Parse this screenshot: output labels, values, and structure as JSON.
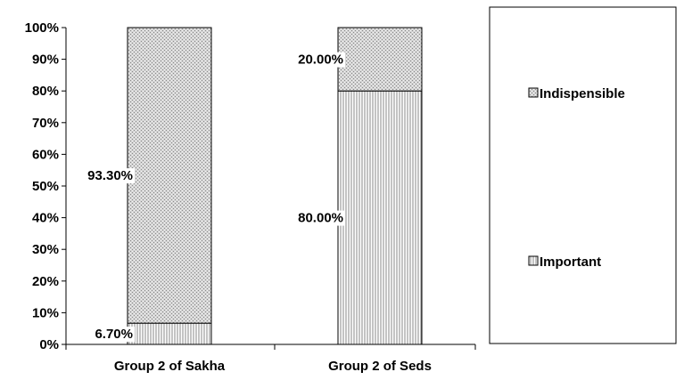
{
  "chart_data": {
    "type": "bar",
    "stacked": true,
    "percent": true,
    "categories": [
      "Group 2 of Sakha",
      "Group 2 of Seds"
    ],
    "series": [
      {
        "name": "Important",
        "values": [
          6.7,
          80.0
        ],
        "labels": [
          "6.70%",
          "80.00%"
        ],
        "pattern": "vertical-lines"
      },
      {
        "name": "Indispensible",
        "values": [
          93.3,
          20.0
        ],
        "labels": [
          "93.30%",
          "20.00%"
        ],
        "pattern": "crosshatch-dots"
      }
    ],
    "ylim": [
      0,
      100
    ],
    "yticks": [
      "0%",
      "10%",
      "20%",
      "30%",
      "40%",
      "50%",
      "60%",
      "70%",
      "80%",
      "90%",
      "100%"
    ],
    "grid": false,
    "legend_position": "right",
    "legend_order": [
      "Indispensible",
      "Important"
    ],
    "title": "",
    "xlabel": "",
    "ylabel": ""
  }
}
